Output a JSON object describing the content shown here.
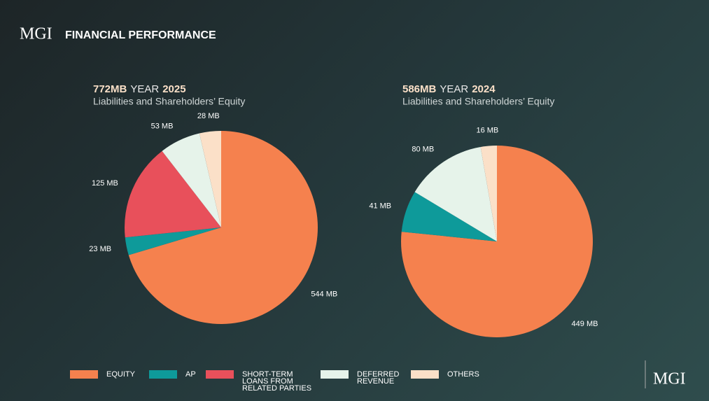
{
  "header": {
    "logo": "MGI",
    "title": "FINANCIAL PERFORMANCE"
  },
  "footer_logo": "MGI",
  "chart_data": [
    {
      "type": "pie",
      "title": [
        "772MB",
        "YEAR",
        "2025"
      ],
      "subtitle": "Liabilities and Shareholders’ Equity",
      "categories": [
        "EQUITY",
        "AP",
        "SHORT-TERM LOANS FROM RELATED PARTIES",
        "DEFERRED REVENUE",
        "OTHERS"
      ],
      "colors": [
        "#f5814e",
        "#0e9a9a",
        "#e8505b",
        "#e6f3ea",
        "#fbe0c8"
      ],
      "values": [
        544,
        23,
        125,
        53,
        28
      ],
      "value_labels": [
        "544 MB",
        "23 MB",
        "125 MB",
        "53 MB",
        "28 MB"
      ]
    },
    {
      "type": "pie",
      "title": [
        "586MB",
        "YEAR",
        "2024"
      ],
      "subtitle": "Liabilities and Shareholders’ Equity",
      "values": [
        449,
        41,
        null,
        80,
        16
      ],
      "value_labels": [
        "449 MB",
        "41 MB",
        null,
        "80 MB",
        "16 MB"
      ]
    }
  ]
}
